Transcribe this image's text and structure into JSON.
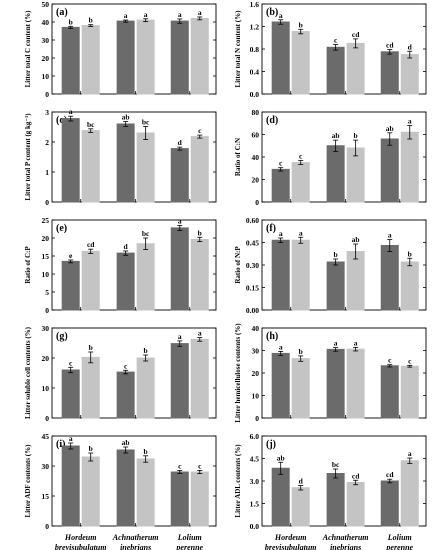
{
  "colors": {
    "dark": "#6b6b6b",
    "light": "#c4c4c4",
    "axis": "#000000"
  },
  "chart_data": [
    {
      "type": "bar",
      "tag": "(a)",
      "ylabel": "Litter total C content (%)",
      "ylim": [
        0,
        50
      ],
      "yticks": [
        "0",
        "10",
        "20",
        "30",
        "40",
        "50"
      ],
      "ytick_values": [
        0,
        10,
        20,
        30,
        40,
        50
      ],
      "series": [
        {
          "values": [
            37,
            40.5,
            40.5
          ],
          "errors": [
            0.6,
            0.6,
            1.2
          ],
          "letters": [
            "b",
            "a",
            "a"
          ]
        },
        {
          "values": [
            38,
            41,
            42
          ],
          "errors": [
            0.5,
            0.8,
            0.8
          ],
          "letters": [
            "b",
            "a",
            "a"
          ]
        }
      ]
    },
    {
      "type": "bar",
      "tag": "(b)",
      "ylabel": "Litter total N content (%)",
      "ylim": [
        0,
        1.6
      ],
      "yticks": [
        "0.0",
        "0.4",
        "0.8",
        "1.2",
        "1.6"
      ],
      "ytick_values": [
        0,
        0.4,
        0.8,
        1.2,
        1.6
      ],
      "series": [
        {
          "values": [
            1.28,
            0.83,
            0.75
          ],
          "errors": [
            0.04,
            0.05,
            0.04
          ],
          "letters": [
            "a",
            "c",
            "cd"
          ]
        },
        {
          "values": [
            1.11,
            0.9,
            0.7
          ],
          "errors": [
            0.04,
            0.08,
            0.06
          ],
          "letters": [
            "b",
            "cd",
            "d"
          ]
        }
      ]
    },
    {
      "type": "bar",
      "tag": "(c)",
      "ylabel": "Litter total P content (g kg⁻¹)",
      "ylim": [
        0,
        3
      ],
      "yticks": [
        "0",
        "1",
        "2",
        "3"
      ],
      "ytick_values": [
        0,
        1,
        2,
        3
      ],
      "series": [
        {
          "values": [
            2.78,
            2.6,
            1.78
          ],
          "errors": [
            0.08,
            0.08,
            0.05
          ],
          "letters": [
            "a",
            "ab",
            "d"
          ]
        },
        {
          "values": [
            2.38,
            2.3,
            2.18
          ],
          "errors": [
            0.06,
            0.22,
            0.05
          ],
          "letters": [
            "bc",
            "bc",
            "c"
          ]
        }
      ]
    },
    {
      "type": "bar",
      "tag": "(d)",
      "ylabel": "Ratio of C:N",
      "ylim": [
        0,
        80
      ],
      "yticks": [
        "0",
        "20",
        "40",
        "60",
        "80"
      ],
      "ytick_values": [
        0,
        20,
        40,
        60,
        80
      ],
      "series": [
        {
          "values": [
            29,
            50,
            56
          ],
          "errors": [
            1.5,
            5,
            5.5
          ],
          "letters": [
            "c",
            "ab",
            "ab"
          ]
        },
        {
          "values": [
            35,
            48,
            62
          ],
          "errors": [
            1.8,
            7,
            6
          ],
          "letters": [
            "c",
            "b",
            "a"
          ]
        }
      ]
    },
    {
      "type": "bar",
      "tag": "(e)",
      "ylabel": "Ratio of C:P",
      "ylim": [
        0,
        25
      ],
      "yticks": [
        "0",
        "5",
        "10",
        "15",
        "20",
        "25"
      ],
      "ytick_values": [
        0,
        5,
        10,
        15,
        20,
        25
      ],
      "series": [
        {
          "values": [
            13.5,
            15.8,
            22.8
          ],
          "errors": [
            0.4,
            0.6,
            0.7
          ],
          "letters": [
            "e",
            "d",
            "a"
          ]
        },
        {
          "values": [
            16.3,
            18.4,
            19.6
          ],
          "errors": [
            0.6,
            1.6,
            0.6
          ],
          "letters": [
            "cd",
            "bc",
            "b"
          ]
        }
      ]
    },
    {
      "type": "bar",
      "tag": "(f)",
      "ylabel": "Ratio of N:P",
      "ylim": [
        0,
        0.6
      ],
      "yticks": [
        "0.00",
        "0.15",
        "0.30",
        "0.45",
        "0.60"
      ],
      "ytick_values": [
        0,
        0.15,
        0.3,
        0.45,
        0.6
      ],
      "series": [
        {
          "values": [
            0.465,
            0.32,
            0.43
          ],
          "errors": [
            0.015,
            0.02,
            0.04
          ],
          "letters": [
            "a",
            "b",
            "a"
          ]
        },
        {
          "values": [
            0.465,
            0.39,
            0.32
          ],
          "errors": [
            0.02,
            0.05,
            0.025
          ],
          "letters": [
            "a",
            "ab",
            "b"
          ]
        }
      ]
    },
    {
      "type": "bar",
      "tag": "(g)",
      "ylabel": "Litter soluble cell contents (%)",
      "ylim": [
        0,
        30
      ],
      "yticks": [
        "0",
        "10",
        "20",
        "30"
      ],
      "ytick_values": [
        0,
        10,
        20,
        30
      ],
      "series": [
        {
          "values": [
            16,
            15.3,
            24.8
          ],
          "errors": [
            0.9,
            0.6,
            0.9
          ],
          "letters": [
            "c",
            "c",
            "a"
          ]
        },
        {
          "values": [
            20.2,
            20,
            26.2
          ],
          "errors": [
            1.8,
            1,
            0.6
          ],
          "letters": [
            "b",
            "b",
            "a"
          ]
        }
      ]
    },
    {
      "type": "bar",
      "tag": "(h)",
      "ylabel": "Litter hemicellulose contents (%)",
      "ylim": [
        0,
        40
      ],
      "yticks": [
        "0",
        "10",
        "20",
        "30",
        "40"
      ],
      "ytick_values": [
        0,
        10,
        20,
        30,
        40
      ],
      "series": [
        {
          "values": [
            28.7,
            30.5,
            23.2
          ],
          "errors": [
            0.9,
            0.8,
            0.5
          ],
          "letters": [
            "a",
            "a",
            "c"
          ]
        },
        {
          "values": [
            26.4,
            30.6,
            23
          ],
          "errors": [
            1.2,
            0.8,
            0.4
          ],
          "letters": [
            "b",
            "a",
            "c"
          ]
        }
      ]
    },
    {
      "type": "bar",
      "tag": "(i)",
      "ylabel": "Litter ADF contents (%)",
      "ylim": [
        0,
        45
      ],
      "yticks": [
        "0",
        "15",
        "30",
        "45"
      ],
      "ytick_values": [
        0,
        15,
        30,
        45
      ],
      "series": [
        {
          "values": [
            40,
            38,
            27
          ],
          "errors": [
            1.5,
            1.5,
            0.8
          ],
          "letters": [
            "a",
            "ab",
            "c"
          ]
        },
        {
          "values": [
            34.5,
            33.5,
            27
          ],
          "errors": [
            2,
            1.6,
            0.8
          ],
          "letters": [
            "b",
            "b",
            "c"
          ]
        }
      ]
    },
    {
      "type": "bar",
      "tag": "(j)",
      "ylabel": "Litter ADL contents (%)",
      "ylim": [
        0,
        6
      ],
      "yticks": [
        "0.0",
        "1.5",
        "3.0",
        "4.5",
        "6.0"
      ],
      "ytick_values": [
        0,
        1.5,
        3,
        4.5,
        6
      ],
      "series": [
        {
          "values": [
            3.85,
            3.5,
            3.0
          ],
          "errors": [
            0.4,
            0.3,
            0.12
          ],
          "letters": [
            "ab",
            "bc",
            "cd"
          ]
        },
        {
          "values": [
            2.55,
            2.9,
            4.35
          ],
          "errors": [
            0.15,
            0.15,
            0.18
          ],
          "letters": [
            "d",
            "cd",
            "a"
          ]
        }
      ]
    }
  ],
  "x_categories": [
    {
      "line1": "Hordeum",
      "line2": "brevisubulatum"
    },
    {
      "line1": "Achnatherum",
      "line2": "inebrians"
    },
    {
      "line1": "Lolium",
      "line2": "perenne"
    }
  ]
}
